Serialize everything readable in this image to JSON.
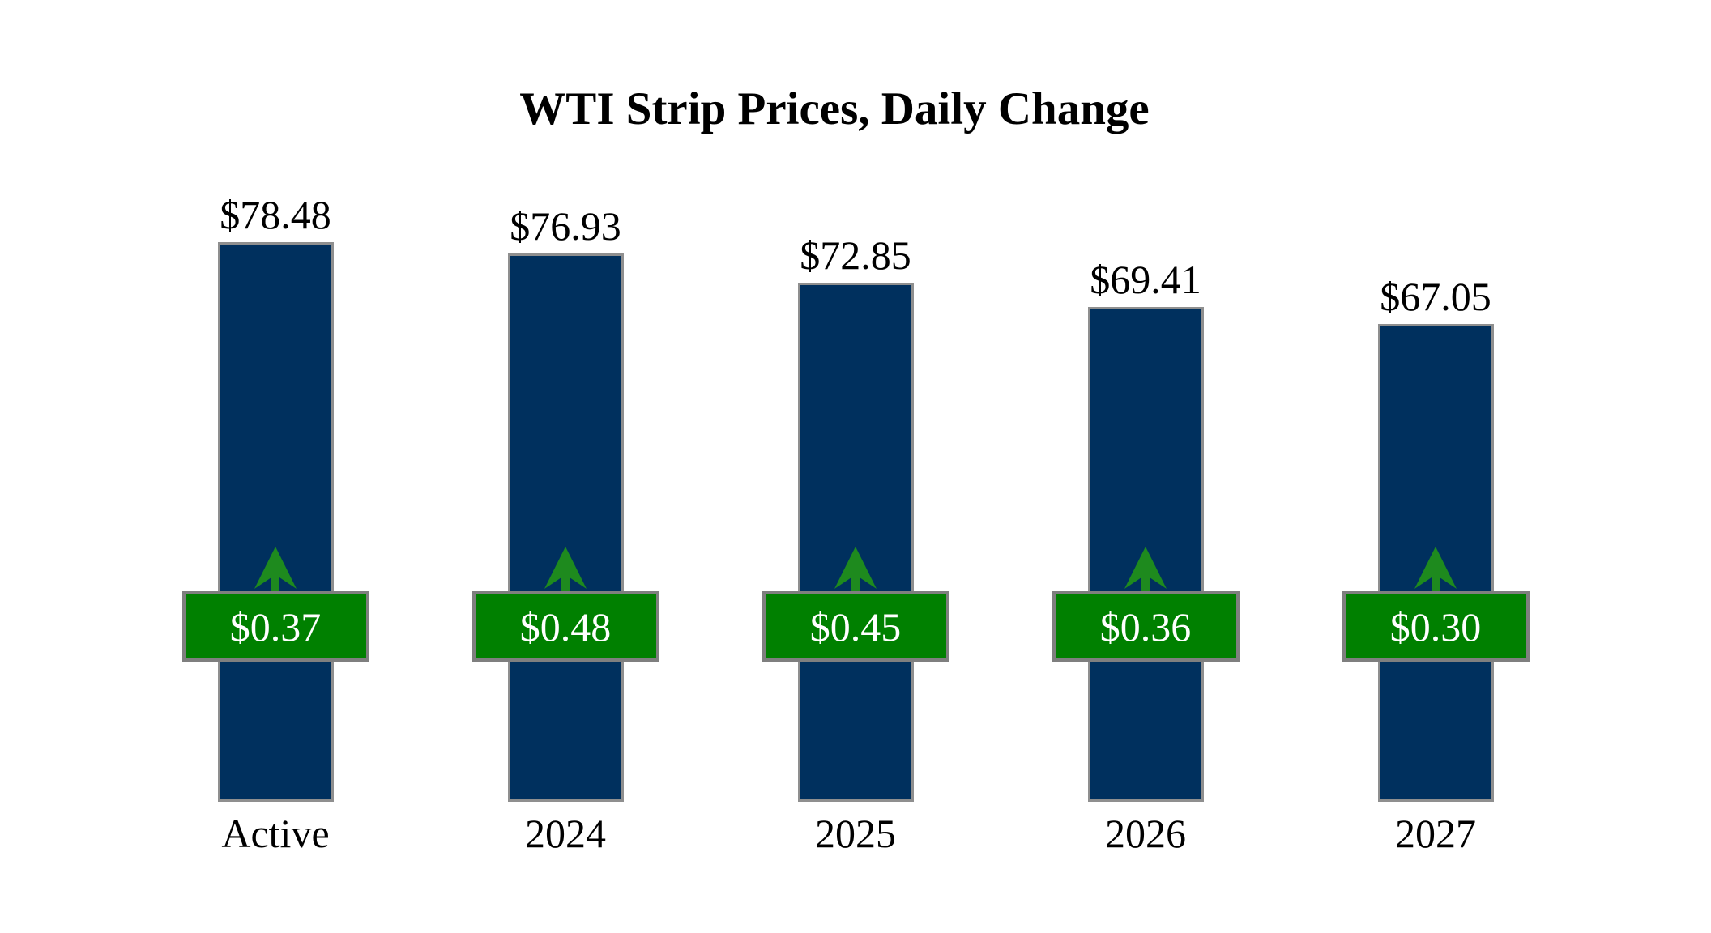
{
  "chart_data": {
    "type": "bar",
    "title": "WTI Strip Prices, Daily Change",
    "categories": [
      "Active",
      "2024",
      "2025",
      "2026",
      "2027"
    ],
    "series": [
      {
        "name": "strip-price",
        "labels": [
          "$78.48",
          "$76.93",
          "$72.85",
          "$69.41",
          "$67.05"
        ],
        "values": [
          78.48,
          76.93,
          72.85,
          69.41,
          67.05
        ]
      },
      {
        "name": "daily-change",
        "labels": [
          "$0.37",
          "$0.48",
          "$0.45",
          "$0.36",
          "$0.30"
        ],
        "values": [
          0.37,
          0.48,
          0.45,
          0.36,
          0.3
        ],
        "direction": "up",
        "indicator": "up-arrow"
      }
    ],
    "ylim": [
      0,
      90
    ],
    "axes": "hidden",
    "grid": "off",
    "legend": "none",
    "colors": {
      "bar": "#00305e",
      "bar_border": "#8f8f8f",
      "badge": "#008000",
      "badge_border": "#7f7f7f",
      "arrow": "#1e8a1e",
      "value_text": "#000000",
      "badge_text": "#ffffff",
      "bg": "#ffffff"
    }
  }
}
